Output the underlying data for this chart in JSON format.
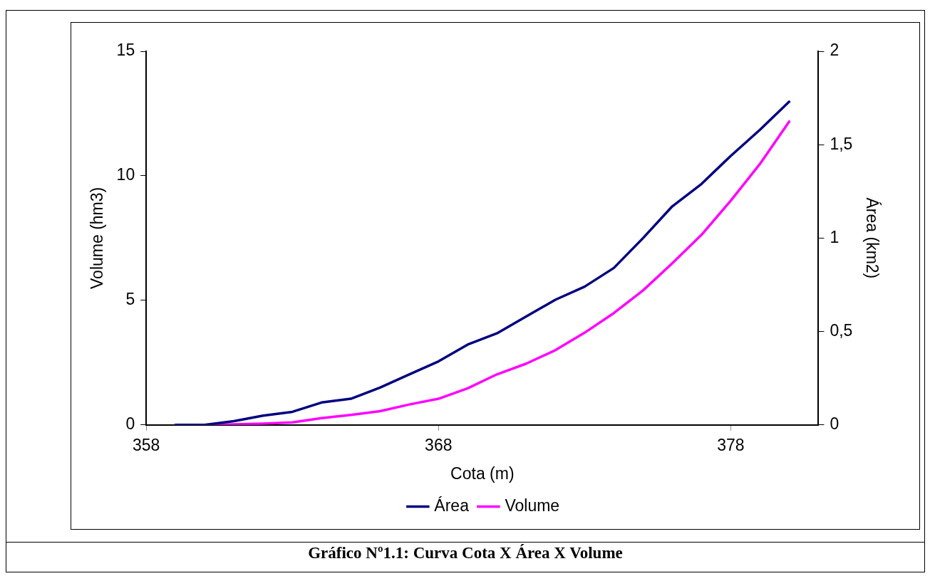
{
  "chart_data": {
    "type": "line",
    "xlabel": "Cota (m)",
    "ylabel": "Volume (hm3)",
    "y2label": "Área (km2)",
    "x": [
      359,
      360,
      361,
      362,
      363,
      364,
      365,
      366,
      367,
      368,
      369,
      370,
      371,
      372,
      373,
      374,
      375,
      376,
      377,
      378,
      379,
      380
    ],
    "xlim": [
      358,
      381
    ],
    "xticks": [
      358,
      368,
      378
    ],
    "ylim": [
      0,
      15
    ],
    "yticks": [
      0,
      5,
      10,
      15
    ],
    "y2lim": [
      0,
      2
    ],
    "y2ticks": [
      0,
      {
        "value": 0.5,
        "label": "0,5"
      },
      1,
      {
        "value": 1.5,
        "label": "1,5"
      },
      2
    ],
    "series": [
      {
        "name": "Área",
        "color": "#000080",
        "axis": "y2",
        "values": [
          0,
          0,
          0.02,
          0.05,
          0.07,
          0.12,
          0.14,
          0.2,
          0.27,
          0.34,
          0.43,
          0.49,
          0.58,
          0.67,
          0.74,
          0.84,
          1.0,
          1.17,
          1.29,
          1.44,
          1.58,
          1.73
        ]
      },
      {
        "name": "Volume",
        "color": "#ff00ff",
        "values": [
          0,
          0,
          0.02,
          0.05,
          0.1,
          0.27,
          0.4,
          0.55,
          0.82,
          1.05,
          1.47,
          2.03,
          2.46,
          3.0,
          3.7,
          4.49,
          5.4,
          6.49,
          7.63,
          9.0,
          10.48,
          12.18
        ]
      }
    ],
    "grid": false,
    "legend": "bottom",
    "marker": "none",
    "line_style": "solid",
    "annotations": [
      "Gráfico Nº1.1: Curva Cota X Área X Volume"
    ]
  }
}
